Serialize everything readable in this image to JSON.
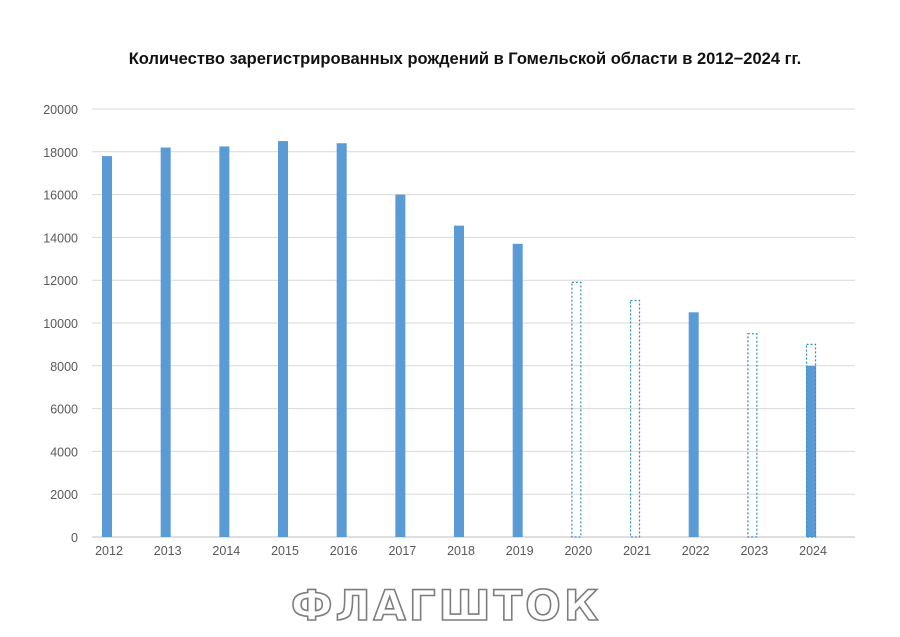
{
  "chart_data": {
    "type": "bar",
    "title": "Количество зарегистрированных рождений в Гомельской области в 2012−2024 гг.",
    "xlabel": "",
    "ylabel": "",
    "categories": [
      "2012",
      "2013",
      "2014",
      "2015",
      "2016",
      "2017",
      "2018",
      "2019",
      "2020",
      "2021",
      "2022",
      "2023",
      "2024"
    ],
    "series": [
      {
        "values": [
          17800,
          18200,
          18250,
          18500,
          18400,
          16000,
          14550,
          13700,
          0,
          0,
          10500,
          0,
          8000
        ]
      },
      {
        "style": "dashed-outline",
        "values": [
          0,
          0,
          0,
          0,
          0,
          0,
          0,
          0,
          11900,
          11050,
          0,
          9500,
          9000
        ]
      }
    ],
    "ylim": [
      0,
      20000
    ],
    "yticks": [
      0,
      2000,
      4000,
      6000,
      8000,
      10000,
      12000,
      14000,
      16000,
      18000,
      20000
    ],
    "grid": true,
    "colors": {
      "bar": "#5b9bd5",
      "dashed": "#2e8fc8",
      "grid": "#d9d9d9",
      "axis": "#bfbfbf",
      "tick_label": "#595959"
    }
  },
  "watermark": {
    "text": "ФЛАГШТОК",
    "color": "#9a9a9a"
  }
}
